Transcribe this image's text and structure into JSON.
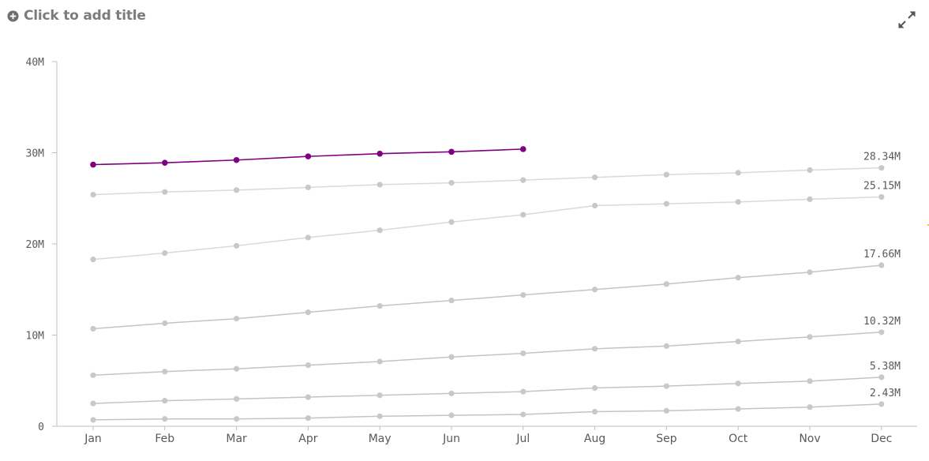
{
  "header": {
    "title_placeholder": "Click to add title",
    "add_icon": "plus-circle-icon",
    "expand_icon": "expand-arrows-icon"
  },
  "chart_data": {
    "type": "line",
    "title": "",
    "xlabel": "",
    "ylabel": "",
    "categories": [
      "Jan",
      "Feb",
      "Mar",
      "Apr",
      "May",
      "Jun",
      "Jul",
      "Aug",
      "Sep",
      "Oct",
      "Nov",
      "Dec"
    ],
    "y_ticks": [
      {
        "value": 0,
        "label": "0"
      },
      {
        "value": 10000000,
        "label": "10M"
      },
      {
        "value": 20000000,
        "label": "20M"
      },
      {
        "value": 30000000,
        "label": "30M"
      },
      {
        "value": 40000000,
        "label": "40M"
      }
    ],
    "ylim": [
      0,
      40000000
    ],
    "grid": false,
    "colors": {
      "highlight": "#800080",
      "lines_light": "#d9d9d9",
      "lines_mid": "#c4c4c4",
      "points": "#c8c8c8",
      "axis": "#bfbfbf",
      "marker": "#f5a623"
    },
    "series": [
      {
        "highlight": true,
        "style": "highlight",
        "values": [
          28.7,
          28.9,
          29.2,
          29.6,
          29.9,
          30.1,
          30.4,
          null,
          null,
          null,
          null,
          null
        ],
        "end_label": ""
      },
      {
        "highlight": false,
        "style": "light",
        "values": [
          25.4,
          25.7,
          25.9,
          26.2,
          26.5,
          26.7,
          27.0,
          27.3,
          27.6,
          27.8,
          28.1,
          28.34
        ],
        "end_label": "28.34M"
      },
      {
        "highlight": false,
        "style": "light",
        "values": [
          18.3,
          19.0,
          19.8,
          20.7,
          21.5,
          22.4,
          23.2,
          24.2,
          24.4,
          24.6,
          24.9,
          25.15
        ],
        "end_label": "25.15M"
      },
      {
        "highlight": false,
        "style": "mid",
        "values": [
          10.7,
          11.3,
          11.8,
          12.5,
          13.2,
          13.8,
          14.4,
          15.0,
          15.6,
          16.3,
          16.9,
          17.66
        ],
        "end_label": "17.66M"
      },
      {
        "highlight": false,
        "style": "mid",
        "values": [
          5.6,
          6.0,
          6.3,
          6.7,
          7.1,
          7.6,
          8.0,
          8.5,
          8.8,
          9.3,
          9.8,
          10.32
        ],
        "end_label": "10.32M"
      },
      {
        "highlight": false,
        "style": "mid",
        "values": [
          2.5,
          2.8,
          3.0,
          3.2,
          3.4,
          3.6,
          3.8,
          4.2,
          4.4,
          4.7,
          4.95,
          5.38
        ],
        "end_label": "5.38M"
      },
      {
        "highlight": false,
        "style": "mid",
        "values": [
          0.7,
          0.8,
          0.8,
          0.9,
          1.1,
          1.2,
          1.3,
          1.6,
          1.7,
          1.9,
          2.1,
          2.43
        ],
        "end_label": "2.43M"
      }
    ],
    "value_unit": "millions"
  }
}
